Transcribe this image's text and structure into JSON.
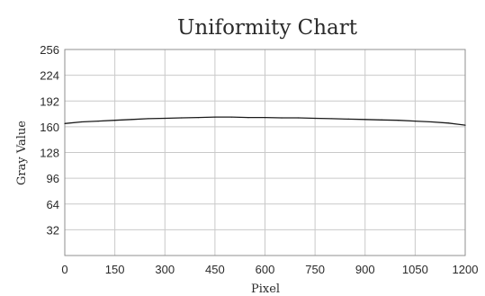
{
  "chart_data": {
    "type": "line",
    "title": "Uniformity Chart",
    "xlabel": "Pixel",
    "ylabel": "Gray Value",
    "xlim": [
      0,
      1200
    ],
    "ylim": [
      0,
      256
    ],
    "xticks": [
      0,
      150,
      300,
      450,
      600,
      750,
      900,
      1050,
      1200
    ],
    "yticks": [
      32,
      64,
      96,
      128,
      160,
      192,
      224,
      256
    ],
    "grid": true,
    "series": [
      {
        "color": "#1a1a1a",
        "x": [
          0,
          50,
          100,
          150,
          200,
          250,
          300,
          350,
          400,
          450,
          500,
          550,
          600,
          650,
          700,
          750,
          800,
          850,
          900,
          950,
          1000,
          1050,
          1100,
          1150,
          1200
        ],
        "y": [
          164,
          166,
          167,
          168,
          169,
          170,
          170.5,
          171,
          171.5,
          172,
          172,
          171.5,
          171.5,
          171,
          171,
          170.5,
          170,
          169.5,
          169,
          168.5,
          168,
          167,
          166,
          164.5,
          162
        ]
      }
    ]
  }
}
